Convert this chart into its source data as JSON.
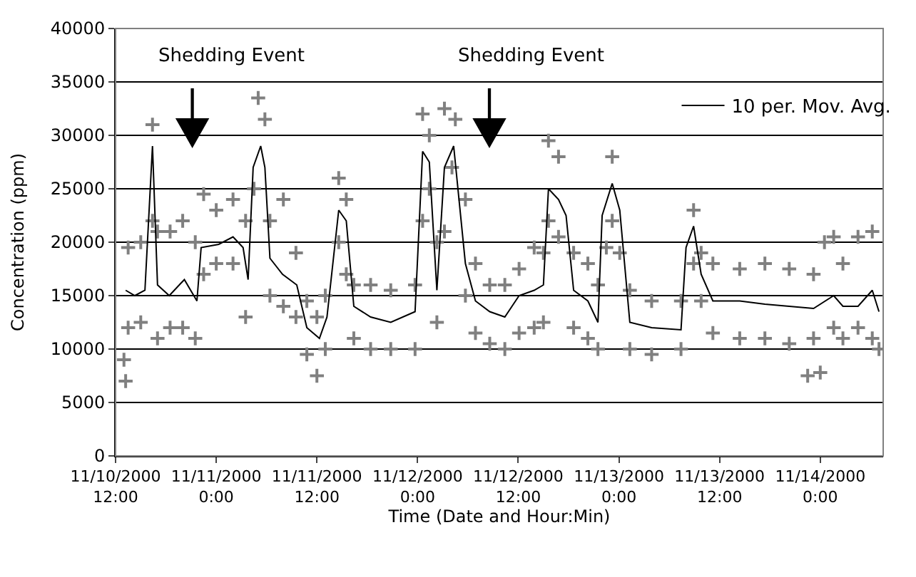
{
  "chart_data": {
    "type": "scatter",
    "xlabel": "Time (Date and Hour:Min)",
    "ylabel": "Concentration (ppm)",
    "xlim": [
      "2000-11-10T12:00",
      "2000-11-14T07:30"
    ],
    "xticks": [
      {
        "value": "2000-11-10T12:00",
        "label": "11/10/2000 12:00"
      },
      {
        "value": "2000-11-11T00:00",
        "label": "11/11/2000 0:00"
      },
      {
        "value": "2000-11-11T12:00",
        "label": "11/11/2000 12:00"
      },
      {
        "value": "2000-11-12T00:00",
        "label": "11/12/2000 0:00"
      },
      {
        "value": "2000-11-12T12:00",
        "label": "11/12/2000 12:00"
      },
      {
        "value": "2000-11-13T00:00",
        "label": "11/13/2000 0:00"
      },
      {
        "value": "2000-11-13T12:00",
        "label": "11/13/2000 12:00"
      },
      {
        "value": "2000-11-14T00:00",
        "label": "11/14/2000 0:00"
      }
    ],
    "ylim": [
      0,
      40000
    ],
    "yticks": [
      0,
      5000,
      10000,
      15000,
      20000,
      25000,
      30000,
      35000,
      40000
    ],
    "grid": "y",
    "legend": "top right",
    "annotations": [
      "Shedding Event",
      "Shedding Event"
    ],
    "series": [
      {
        "color": "#808080",
        "marker": "cross",
        "x": [
          "2000-11-10T13:00",
          "2000-11-10T13:12",
          "2000-11-10T13:30",
          "2000-11-10T13:30",
          "2000-11-10T15:00",
          "2000-11-10T15:00",
          "2000-11-10T16:24",
          "2000-11-10T16:24",
          "2000-11-10T17:00",
          "2000-11-10T17:00",
          "2000-11-10T18:30",
          "2000-11-10T18:30",
          "2000-11-10T20:00",
          "2000-11-10T20:00",
          "2000-11-10T21:30",
          "2000-11-10T21:30",
          "2000-11-10T22:30",
          "2000-11-10T22:30",
          "2000-11-11T00:00",
          "2000-11-11T00:00",
          "2000-11-11T02:00",
          "2000-11-11T02:00",
          "2000-11-11T03:30",
          "2000-11-11T03:30",
          "2000-11-11T04:30",
          "2000-11-11T05:00",
          "2000-11-11T05:48",
          "2000-11-11T06:24",
          "2000-11-11T06:24",
          "2000-11-11T08:00",
          "2000-11-11T08:00",
          "2000-11-11T09:30",
          "2000-11-11T09:30",
          "2000-11-11T10:48",
          "2000-11-11T10:48",
          "2000-11-11T12:00",
          "2000-11-11T12:00",
          "2000-11-11T13:00",
          "2000-11-11T13:00",
          "2000-11-11T14:36",
          "2000-11-11T14:36",
          "2000-11-11T15:30",
          "2000-11-11T15:30",
          "2000-11-11T16:24",
          "2000-11-11T16:24",
          "2000-11-11T18:24",
          "2000-11-11T18:24",
          "2000-11-11T20:48",
          "2000-11-11T20:48",
          "2000-11-11T23:42",
          "2000-11-11T23:42",
          "2000-11-12T00:36",
          "2000-11-12T00:36",
          "2000-11-12T01:24",
          "2000-11-12T01:24",
          "2000-11-12T02:18",
          "2000-11-12T02:18",
          "2000-11-12T03:12",
          "2000-11-12T03:12",
          "2000-11-12T04:06",
          "2000-11-12T04:30",
          "2000-11-12T05:42",
          "2000-11-12T05:42",
          "2000-11-12T06:54",
          "2000-11-12T06:54",
          "2000-11-12T08:36",
          "2000-11-12T08:36",
          "2000-11-12T10:24",
          "2000-11-12T10:24",
          "2000-11-12T12:06",
          "2000-11-12T12:06",
          "2000-11-12T13:54",
          "2000-11-12T13:54",
          "2000-11-12T15:00",
          "2000-11-12T15:00",
          "2000-11-12T15:36",
          "2000-11-12T15:36",
          "2000-11-12T16:48",
          "2000-11-12T16:48",
          "2000-11-12T18:36",
          "2000-11-12T18:36",
          "2000-11-12T20:18",
          "2000-11-12T20:18",
          "2000-11-12T21:30",
          "2000-11-12T21:30",
          "2000-11-12T22:30",
          "2000-11-12T23:12",
          "2000-11-12T23:12",
          "2000-11-13T00:06",
          "2000-11-13T01:18",
          "2000-11-13T01:18",
          "2000-11-13T03:54",
          "2000-11-13T03:54",
          "2000-11-13T07:24",
          "2000-11-13T07:24",
          "2000-11-13T08:54",
          "2000-11-13T08:54",
          "2000-11-13T09:48",
          "2000-11-13T09:48",
          "2000-11-13T11:12",
          "2000-11-13T11:12",
          "2000-11-13T14:24",
          "2000-11-13T14:24",
          "2000-11-13T17:24",
          "2000-11-13T17:24",
          "2000-11-13T20:18",
          "2000-11-13T20:18",
          "2000-11-13T22:30",
          "2000-11-13T23:12",
          "2000-11-13T23:12",
          "2000-11-14T00:00",
          "2000-11-14T00:30",
          "2000-11-14T01:36",
          "2000-11-14T01:36",
          "2000-11-14T02:42",
          "2000-11-14T02:42",
          "2000-11-14T04:30",
          "2000-11-14T04:30",
          "2000-11-14T06:12",
          "2000-11-14T06:12",
          "2000-11-14T07:00"
        ],
        "values": [
          9000,
          7000,
          12000,
          19500,
          12500,
          20000,
          31000,
          22000,
          11000,
          21000,
          12000,
          21000,
          12000,
          22000,
          11000,
          20000,
          17000,
          24500,
          18000,
          23000,
          18000,
          24000,
          13000,
          22000,
          25000,
          33500,
          31500,
          15000,
          22000,
          14000,
          24000,
          13000,
          19000,
          9500,
          14500,
          7500,
          13000,
          10000,
          15000,
          20000,
          26000,
          17000,
          24000,
          11000,
          16000,
          10000,
          16000,
          10000,
          15500,
          10000,
          16000,
          22000,
          32000,
          25000,
          30000,
          12500,
          20000,
          21000,
          32500,
          27000,
          31500,
          15000,
          24000,
          11500,
          18000,
          10500,
          16000,
          10000,
          16000,
          11500,
          17500,
          12000,
          19500,
          12500,
          19000,
          22000,
          29500,
          20500,
          28000,
          12000,
          19000,
          11000,
          18000,
          10000,
          16000,
          19500,
          22000,
          28000,
          19000,
          10000,
          15500,
          9500,
          14500,
          10000,
          14500,
          18000,
          23000,
          14500,
          19000,
          11500,
          18000,
          11000,
          17500,
          11000,
          18000,
          10500,
          17500,
          7500,
          11000,
          17000,
          7800,
          20000,
          20500,
          12000,
          11000,
          18000,
          20500,
          12000,
          21000,
          11000,
          10000
        ]
      },
      {
        "type": "line",
        "name": "10 per. Mov. Avg.",
        "color": "#000000",
        "marker": "none",
        "line_style": "solid",
        "x": [
          "2000-11-10T13:12",
          "2000-11-10T14:18",
          "2000-11-10T15:30",
          "2000-11-10T16:24",
          "2000-11-10T17:00",
          "2000-11-10T18:24",
          "2000-11-10T20:12",
          "2000-11-10T21:42",
          "2000-11-10T22:12",
          "2000-11-11T00:18",
          "2000-11-11T02:00",
          "2000-11-11T03:12",
          "2000-11-11T03:48",
          "2000-11-11T04:24",
          "2000-11-11T05:18",
          "2000-11-11T05:48",
          "2000-11-11T06:24",
          "2000-11-11T07:54",
          "2000-11-11T09:36",
          "2000-11-11T10:48",
          "2000-11-11T12:18",
          "2000-11-11T13:12",
          "2000-11-11T14:36",
          "2000-11-11T15:30",
          "2000-11-11T16:24",
          "2000-11-11T18:24",
          "2000-11-11T20:48",
          "2000-11-11T23:42",
          "2000-11-12T00:36",
          "2000-11-12T01:24",
          "2000-11-12T02:18",
          "2000-11-12T03:12",
          "2000-11-12T04:18",
          "2000-11-12T05:42",
          "2000-11-12T06:54",
          "2000-11-12T08:36",
          "2000-11-12T10:24",
          "2000-11-12T12:06",
          "2000-11-12T13:54",
          "2000-11-12T15:00",
          "2000-11-12T15:36",
          "2000-11-12T16:48",
          "2000-11-12T17:42",
          "2000-11-12T18:36",
          "2000-11-12T20:18",
          "2000-11-12T21:30",
          "2000-11-12T22:00",
          "2000-11-12T23:12",
          "2000-11-13T00:06",
          "2000-11-13T01:18",
          "2000-11-13T03:54",
          "2000-11-13T07:24",
          "2000-11-13T08:00",
          "2000-11-13T08:54",
          "2000-11-13T09:48",
          "2000-11-13T11:12",
          "2000-11-13T14:24",
          "2000-11-13T17:24",
          "2000-11-13T20:18",
          "2000-11-13T23:12",
          "2000-11-14T01:36",
          "2000-11-14T02:42",
          "2000-11-14T04:30",
          "2000-11-14T06:12",
          "2000-11-14T07:00"
        ],
        "values": [
          15500,
          15000,
          15500,
          29000,
          16000,
          15000,
          16500,
          14500,
          19500,
          19800,
          20500,
          19500,
          16500,
          27000,
          29000,
          27000,
          18500,
          17000,
          16000,
          12000,
          11000,
          13000,
          23000,
          22000,
          14000,
          13000,
          12500,
          13500,
          28500,
          27500,
          15500,
          27000,
          29000,
          18000,
          14500,
          13500,
          13000,
          15000,
          15500,
          16000,
          25000,
          24000,
          22500,
          15500,
          14500,
          12500,
          22500,
          25500,
          23000,
          12500,
          12000,
          11800,
          19500,
          21500,
          17000,
          14500,
          14500,
          14200,
          14000,
          13800,
          15000,
          14000,
          14000,
          15500,
          13500
        ]
      }
    ]
  }
}
